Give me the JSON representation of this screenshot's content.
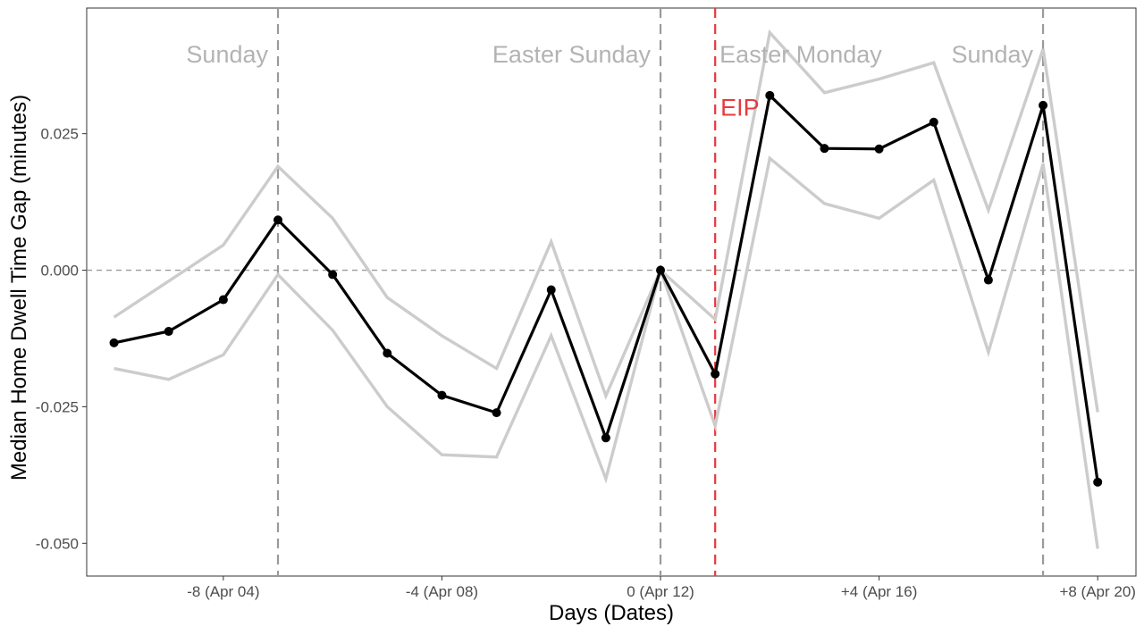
{
  "chart_data": {
    "type": "line",
    "title": "",
    "xlabel": "Days (Dates)",
    "ylabel": "Median Home Dwell Time Gap (minutes)",
    "xlim": [
      -10.5,
      8.7
    ],
    "ylim": [
      -0.056,
      0.048
    ],
    "x_ticks": [
      {
        "value": -8,
        "label": "-8 (Apr 04)"
      },
      {
        "value": -4,
        "label": "-4 (Apr 08)"
      },
      {
        "value": 0,
        "label": "0 (Apr 12)"
      },
      {
        "value": 4,
        "label": "+4 (Apr 16)"
      },
      {
        "value": 8,
        "label": "+8 (Apr 20)"
      }
    ],
    "y_ticks": [
      {
        "value": 0.025,
        "label": "0.025"
      },
      {
        "value": 0.0,
        "label": "0.000"
      },
      {
        "value": -0.025,
        "label": "-0.025"
      },
      {
        "value": -0.05,
        "label": "-0.050"
      }
    ],
    "x": [
      -10,
      -9,
      -8,
      -7,
      -6,
      -5,
      -4,
      -3,
      -2,
      -1,
      0,
      1,
      2,
      3,
      4,
      5,
      6,
      7,
      8
    ],
    "series": [
      {
        "values": [
          -0.0133,
          -0.0112,
          -0.0054,
          0.0092,
          -0.0008,
          -0.0152,
          -0.0229,
          -0.0261,
          -0.0036,
          -0.0307,
          0.0,
          -0.019,
          0.032,
          0.0223,
          0.0222,
          0.0271,
          -0.0018,
          0.0302,
          -0.0388
        ],
        "color": "#000000",
        "role": "estimate",
        "markers": true
      },
      {
        "values": [
          -0.0086,
          -0.002,
          0.0046,
          0.019,
          0.0095,
          -0.005,
          -0.012,
          -0.018,
          0.0052,
          -0.023,
          0.0,
          -0.009,
          0.0435,
          0.0325,
          0.035,
          0.038,
          0.011,
          0.0405,
          -0.026
        ],
        "color": "#cccccc",
        "role": "upper-bound",
        "markers": false
      },
      {
        "values": [
          -0.018,
          -0.02,
          -0.0155,
          -0.0008,
          -0.011,
          -0.025,
          -0.0338,
          -0.0342,
          -0.012,
          -0.0382,
          0.0,
          -0.0285,
          0.0205,
          0.0122,
          0.0095,
          0.0165,
          -0.015,
          0.0195,
          -0.051
        ],
        "color": "#cccccc",
        "role": "lower-bound",
        "markers": false
      }
    ],
    "reference_lines": [
      {
        "orientation": "horizontal",
        "value": 0.0,
        "color": "#9a9a9a",
        "style": "dashed"
      },
      {
        "orientation": "vertical",
        "value": -7,
        "label": "Sunday",
        "color": "#9a9a9a",
        "label_color": "#b3b3b3",
        "style": "dashed",
        "label_side": "left"
      },
      {
        "orientation": "vertical",
        "value": 0,
        "label": "Easter Sunday",
        "color": "#9a9a9a",
        "label_color": "#b3b3b3",
        "style": "dashed",
        "label_side": "left"
      },
      {
        "orientation": "vertical",
        "value": 1,
        "label": "Easter Monday",
        "color": "#e8393c",
        "label_color": "#b3b3b3",
        "style": "dashed",
        "label_side": "right"
      },
      {
        "orientation": "vertical",
        "value": 7,
        "label": "Sunday",
        "color": "#9a9a9a",
        "label_color": "#b3b3b3",
        "style": "dashed",
        "label_side": "left"
      }
    ],
    "annotations": [
      {
        "text": "EIP",
        "x": 1,
        "y": 0.0298,
        "color": "#e8393c"
      }
    ],
    "grid": false,
    "legend": "none"
  }
}
